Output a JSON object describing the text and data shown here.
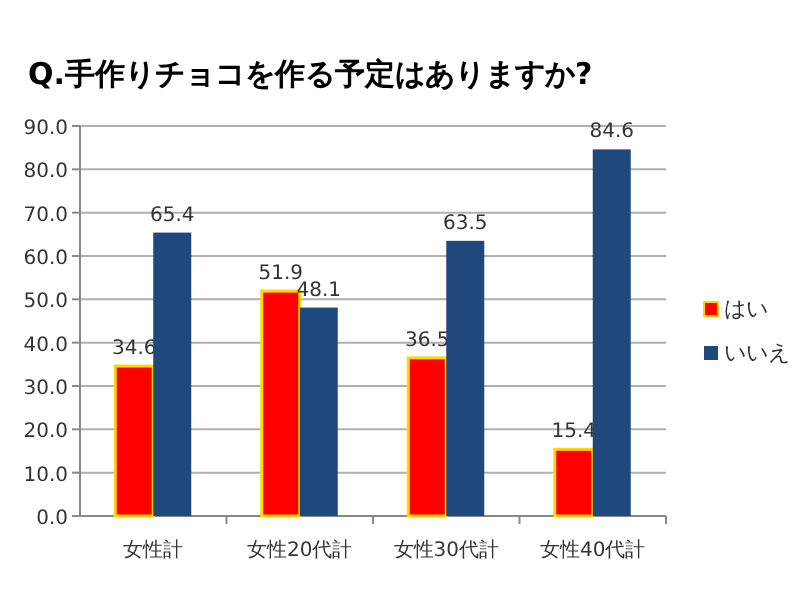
{
  "chart_data": {
    "type": "bar",
    "title": "Q.手作りチョコを作る予定はありますか?",
    "categories": [
      "女性計",
      "女性20代計",
      "女性30代計",
      "女性40代計"
    ],
    "series": [
      {
        "name": "はい",
        "color": "#ff0000",
        "values": [
          34.6,
          51.9,
          36.5,
          15.4
        ]
      },
      {
        "name": "いいえ",
        "color": "#1f497d",
        "values": [
          65.4,
          48.1,
          63.5,
          84.6
        ]
      }
    ],
    "ylim": [
      0,
      90
    ],
    "yticks": [
      {
        "value": 0,
        "label": "0.0"
      },
      {
        "value": 10,
        "label": "10.0"
      },
      {
        "value": 20,
        "label": "20.0"
      },
      {
        "value": 30,
        "label": "30.0"
      },
      {
        "value": 40,
        "label": "40.0"
      },
      {
        "value": 50,
        "label": "50.0"
      },
      {
        "value": 60,
        "label": "60.0"
      },
      {
        "value": 70,
        "label": "70.0"
      },
      {
        "value": 80,
        "label": "80.0"
      },
      {
        "value": 90,
        "label": "90.0"
      }
    ],
    "grid": "y",
    "legend": "right",
    "data_labels": true
  }
}
